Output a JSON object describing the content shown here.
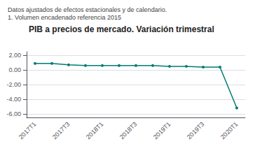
{
  "chart_data": {
    "type": "line",
    "title": "PIB a precios de mercado. Variación trimestral",
    "subtitle": [
      "Datos ajustados de efectos estacionales y de calendario.",
      "1. Volumen encadenado referencia 2015"
    ],
    "categories": [
      "2017T1",
      null,
      "2017T3",
      null,
      "2018T1",
      null,
      "2018T3",
      null,
      "2019T1",
      null,
      "2019T3",
      null,
      "2020T1"
    ],
    "values": [
      0.9,
      0.9,
      0.7,
      0.6,
      0.6,
      0.6,
      0.6,
      0.6,
      0.5,
      0.5,
      0.4,
      0.4,
      -5.2
    ],
    "color": "#007A73",
    "ylim": [
      -6.5,
      2.5
    ],
    "yticks": [
      {
        "value": 2.0,
        "label": "2.00"
      },
      {
        "value": 0.0,
        "label": "0.00"
      },
      {
        "value": -2.0,
        "label": "-2.00"
      },
      {
        "value": -4.0,
        "label": "-4.00"
      },
      {
        "value": -6.0,
        "label": "-6.00"
      }
    ],
    "grid": true
  }
}
